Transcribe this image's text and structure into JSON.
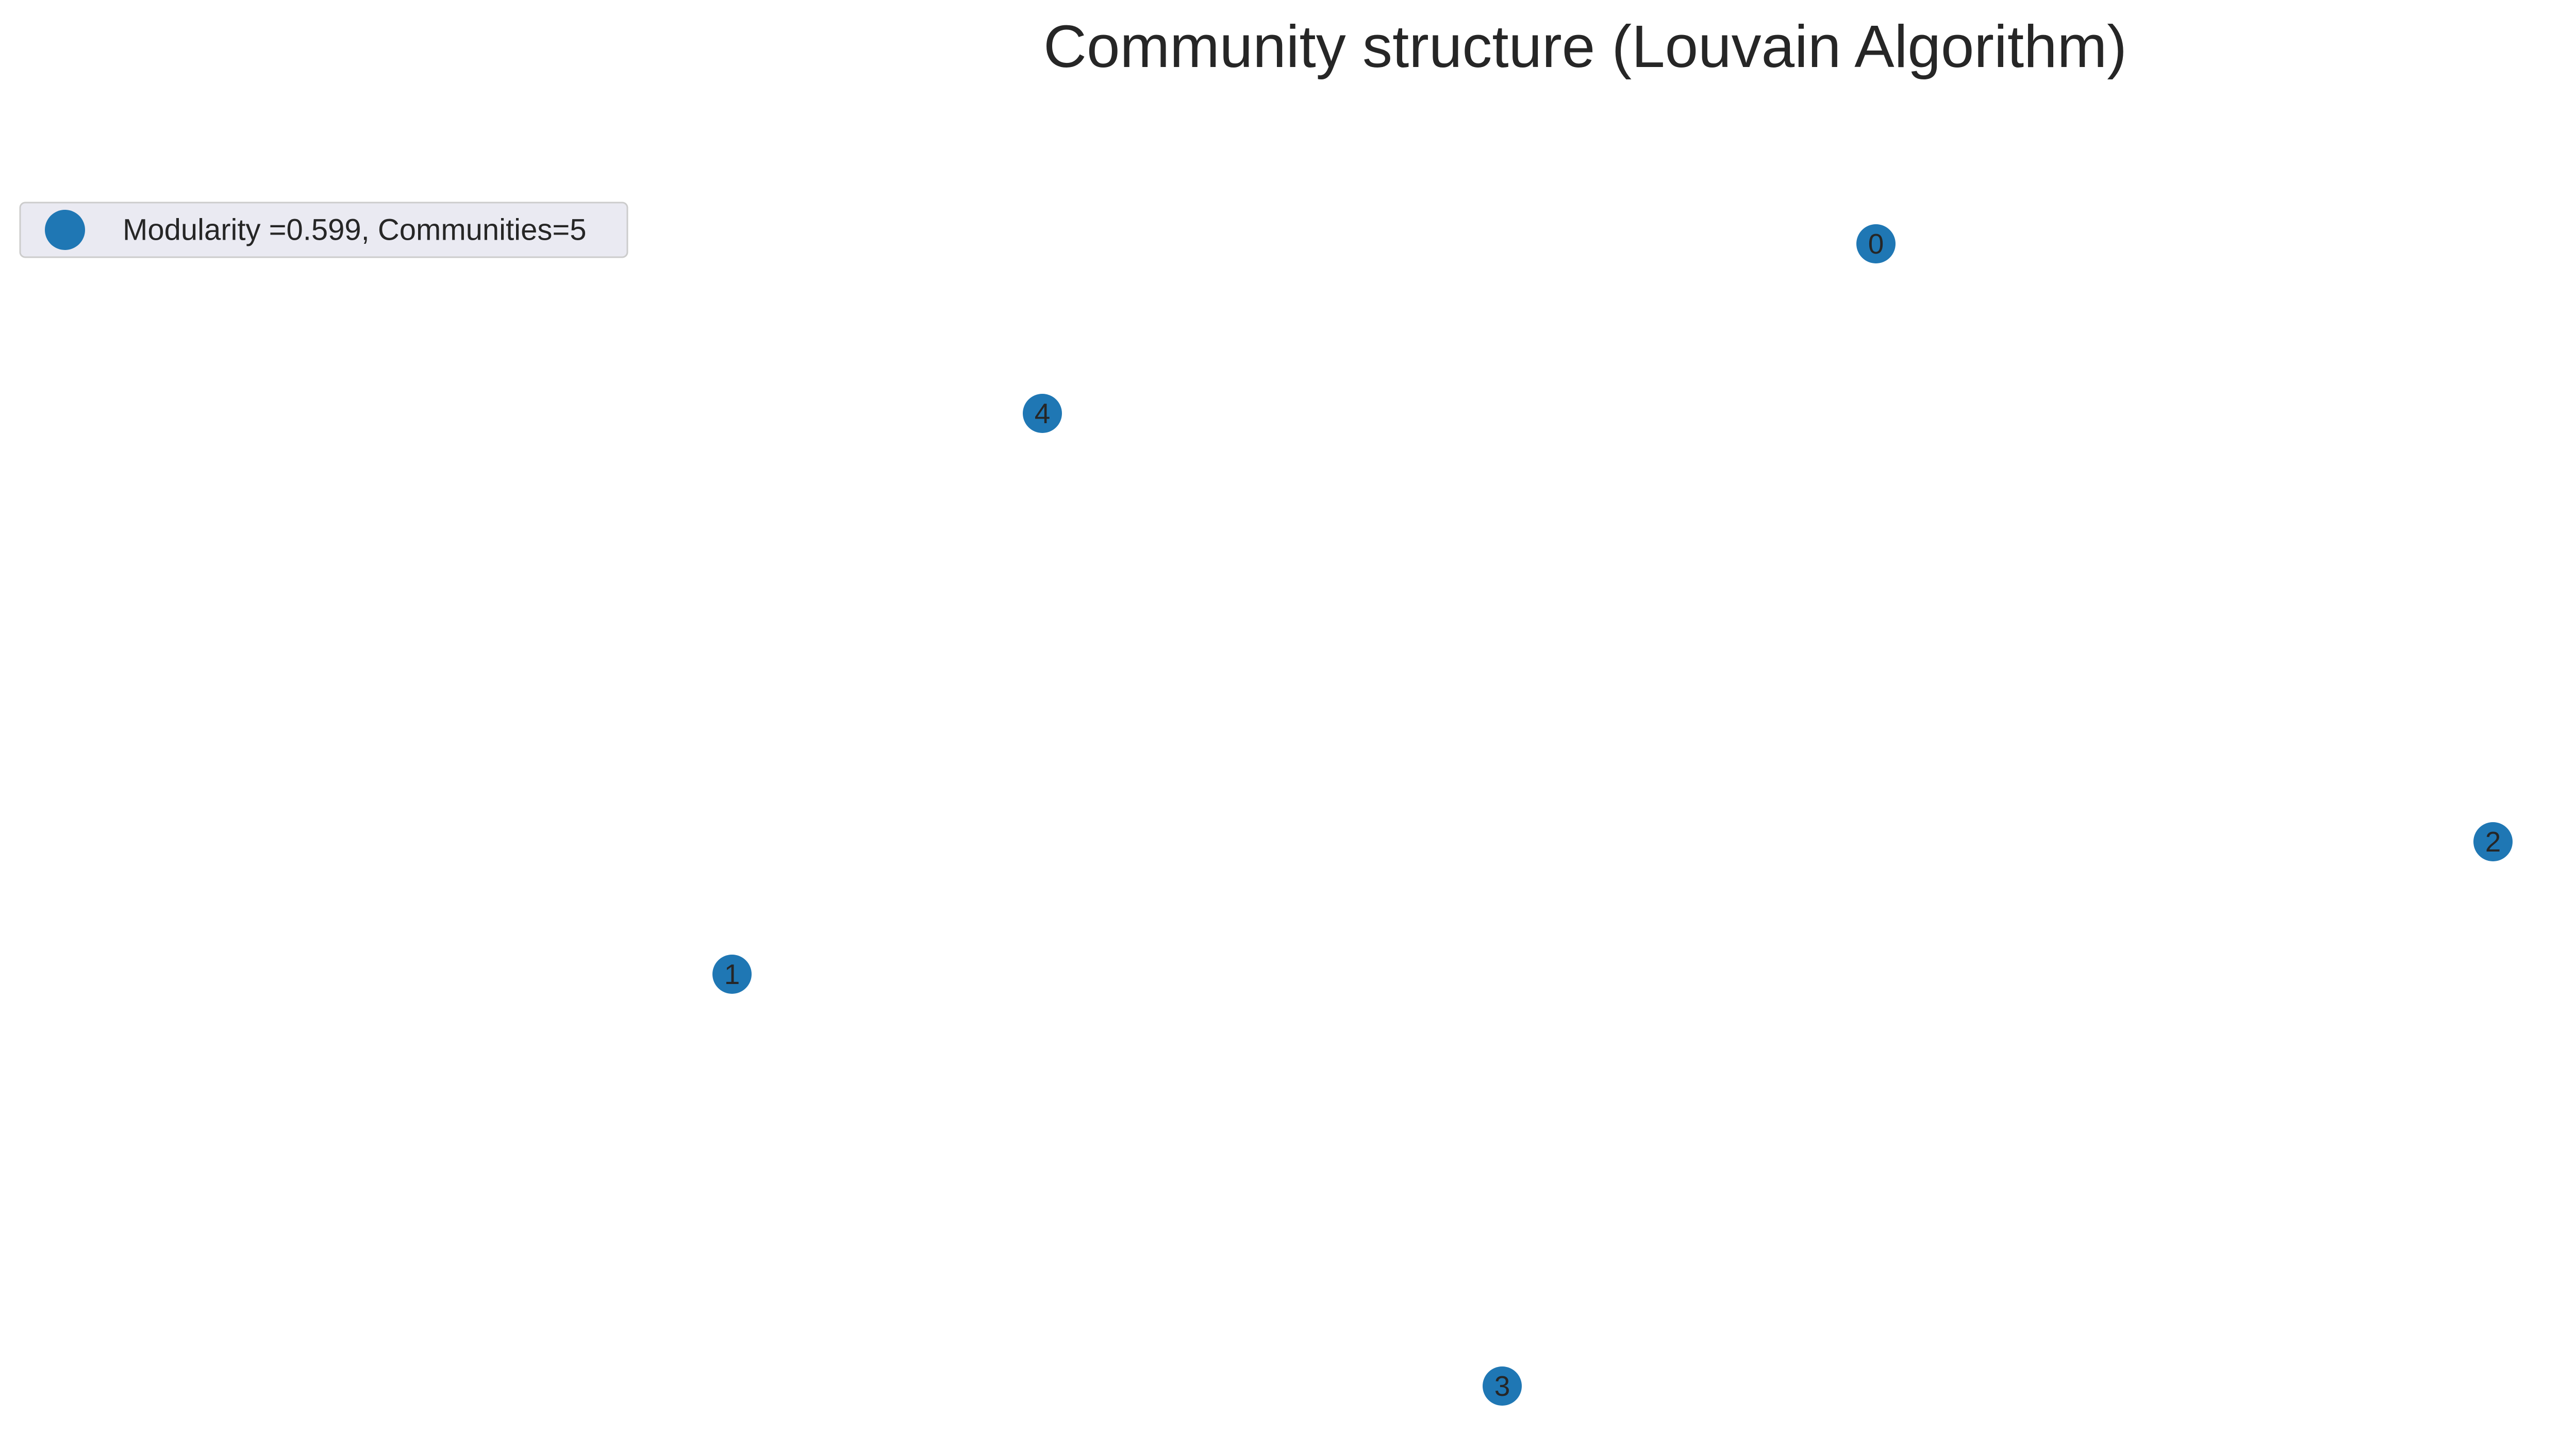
{
  "title": "Community structure (Louvain Algorithm)",
  "legend": {
    "label": "Modularity =0.599, Communities=5"
  },
  "nodes": [
    {
      "label": "0"
    },
    {
      "label": "1"
    },
    {
      "label": "2"
    },
    {
      "label": "3"
    },
    {
      "label": "4"
    }
  ]
}
